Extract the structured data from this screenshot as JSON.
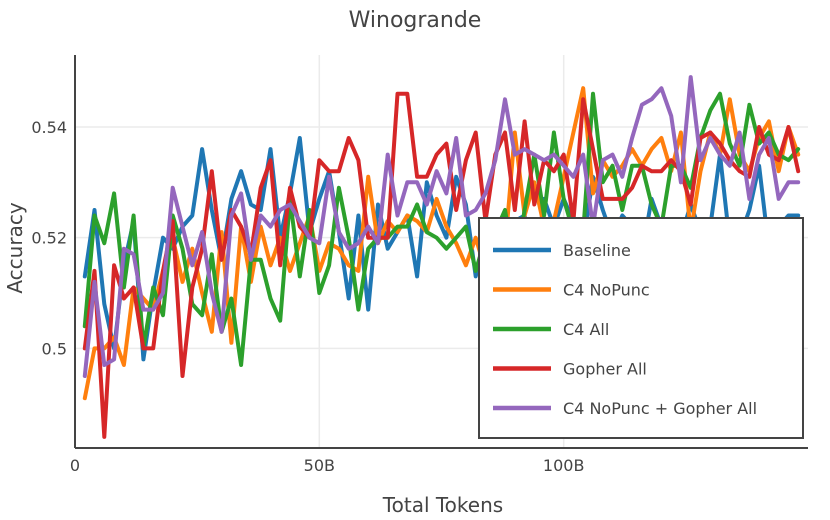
{
  "chart_data": {
    "type": "line",
    "title": "Winogrande",
    "xlabel": "Total Tokens",
    "ylabel": "Accuracy",
    "xlim": [
      0,
      150
    ],
    "ylim": [
      0.482,
      0.553
    ],
    "x_ticks": [
      0,
      50,
      100
    ],
    "x_tick_labels": [
      "0",
      "50B",
      "100B"
    ],
    "y_ticks": [
      0.5,
      0.52,
      0.54
    ],
    "y_tick_labels": [
      "0.5",
      "0.52",
      "0.54"
    ],
    "grid": true,
    "legend_position": "bottom-right",
    "x": [
      2,
      4,
      6,
      8,
      10,
      12,
      14,
      16,
      18,
      20,
      22,
      24,
      26,
      28,
      30,
      32,
      34,
      36,
      38,
      40,
      42,
      44,
      46,
      48,
      50,
      52,
      54,
      56,
      58,
      60,
      62,
      64,
      66,
      68,
      70,
      72,
      74,
      76,
      78,
      80,
      82,
      84,
      86,
      88,
      90,
      92,
      94,
      96,
      98,
      100,
      102,
      104,
      106,
      108,
      110,
      112,
      114,
      116,
      118,
      120,
      122,
      124,
      126,
      128,
      130,
      132,
      134,
      136,
      138,
      140,
      142,
      144,
      146,
      148
    ],
    "series": [
      {
        "name": "Baseline",
        "color": "#1f77b4",
        "values": [
          0.513,
          0.525,
          0.508,
          0.5,
          0.515,
          0.523,
          0.498,
          0.51,
          0.52,
          0.518,
          0.522,
          0.524,
          0.536,
          0.525,
          0.516,
          0.527,
          0.532,
          0.526,
          0.525,
          0.536,
          0.52,
          0.528,
          0.538,
          0.521,
          0.527,
          0.532,
          0.521,
          0.509,
          0.524,
          0.507,
          0.526,
          0.518,
          0.521,
          0.524,
          0.513,
          0.53,
          0.524,
          0.52,
          0.531,
          0.526,
          0.513,
          0.521,
          0.512,
          0.519,
          0.523,
          0.524,
          0.513,
          0.527,
          0.522,
          0.527,
          0.523,
          0.519,
          0.531,
          0.525,
          0.52,
          0.524,
          0.522,
          0.517,
          0.527,
          0.522,
          0.515,
          0.52,
          0.526,
          0.521,
          0.522,
          0.535,
          0.519,
          0.52,
          0.525,
          0.533,
          0.518,
          0.522,
          0.524,
          0.524
        ]
      },
      {
        "name": "C4 NoPunc",
        "color": "#ff7f0e",
        "values": [
          0.491,
          0.5,
          0.5,
          0.502,
          0.497,
          0.511,
          0.509,
          0.507,
          0.514,
          0.52,
          0.512,
          0.518,
          0.51,
          0.503,
          0.521,
          0.501,
          0.522,
          0.512,
          0.522,
          0.515,
          0.52,
          0.514,
          0.519,
          0.524,
          0.514,
          0.519,
          0.518,
          0.515,
          0.514,
          0.531,
          0.519,
          0.523,
          0.521,
          0.524,
          0.523,
          0.521,
          0.527,
          0.522,
          0.519,
          0.515,
          0.52,
          0.514,
          0.516,
          0.518,
          0.539,
          0.524,
          0.53,
          0.522,
          0.523,
          0.531,
          0.539,
          0.547,
          0.528,
          0.534,
          0.531,
          0.533,
          0.536,
          0.533,
          0.536,
          0.538,
          0.532,
          0.539,
          0.521,
          0.532,
          0.539,
          0.535,
          0.545,
          0.535,
          0.532,
          0.538,
          0.541,
          0.532,
          0.54,
          0.535
        ]
      },
      {
        "name": "C4 All",
        "color": "#2ca02c",
        "values": [
          0.504,
          0.524,
          0.519,
          0.528,
          0.511,
          0.524,
          0.5,
          0.511,
          0.506,
          0.524,
          0.518,
          0.508,
          0.506,
          0.517,
          0.503,
          0.509,
          0.497,
          0.516,
          0.516,
          0.509,
          0.505,
          0.527,
          0.513,
          0.525,
          0.51,
          0.515,
          0.529,
          0.52,
          0.507,
          0.518,
          0.52,
          0.52,
          0.522,
          0.522,
          0.526,
          0.521,
          0.52,
          0.518,
          0.52,
          0.522,
          0.514,
          0.52,
          0.521,
          0.525,
          0.514,
          0.525,
          0.535,
          0.524,
          0.539,
          0.527,
          0.521,
          0.521,
          0.546,
          0.53,
          0.533,
          0.525,
          0.533,
          0.533,
          0.526,
          0.522,
          0.533,
          0.533,
          0.529,
          0.538,
          0.543,
          0.546,
          0.537,
          0.533,
          0.544,
          0.537,
          0.539,
          0.535,
          0.534,
          0.536
        ]
      },
      {
        "name": "Gopher All",
        "color": "#d62728",
        "values": [
          0.5,
          0.514,
          0.484,
          0.515,
          0.509,
          0.511,
          0.5,
          0.5,
          0.514,
          0.523,
          0.495,
          0.511,
          0.518,
          0.532,
          0.516,
          0.525,
          0.522,
          0.517,
          0.529,
          0.534,
          0.515,
          0.529,
          0.522,
          0.52,
          0.534,
          0.532,
          0.532,
          0.538,
          0.534,
          0.52,
          0.52,
          0.52,
          0.546,
          0.546,
          0.531,
          0.531,
          0.535,
          0.537,
          0.525,
          0.534,
          0.539,
          0.523,
          0.535,
          0.539,
          0.525,
          0.541,
          0.526,
          0.534,
          0.532,
          0.535,
          0.523,
          0.545,
          0.536,
          0.527,
          0.527,
          0.527,
          0.529,
          0.533,
          0.532,
          0.532,
          0.534,
          0.532,
          0.526,
          0.538,
          0.539,
          0.537,
          0.534,
          0.532,
          0.531,
          0.54,
          0.535,
          0.534,
          0.54,
          0.532
        ]
      },
      {
        "name": "C4 NoPunc + Gopher All",
        "color": "#9467bd",
        "values": [
          0.495,
          0.512,
          0.497,
          0.498,
          0.518,
          0.517,
          0.507,
          0.507,
          0.51,
          0.529,
          0.522,
          0.515,
          0.521,
          0.51,
          0.503,
          0.524,
          0.528,
          0.516,
          0.524,
          0.522,
          0.525,
          0.526,
          0.523,
          0.52,
          0.519,
          0.531,
          0.521,
          0.518,
          0.519,
          0.522,
          0.519,
          0.535,
          0.524,
          0.53,
          0.53,
          0.526,
          0.532,
          0.528,
          0.538,
          0.524,
          0.525,
          0.528,
          0.534,
          0.545,
          0.535,
          0.536,
          0.535,
          0.534,
          0.535,
          0.533,
          0.531,
          0.535,
          0.522,
          0.534,
          0.535,
          0.531,
          0.538,
          0.544,
          0.545,
          0.547,
          0.542,
          0.53,
          0.549,
          0.534,
          0.538,
          0.535,
          0.533,
          0.539,
          0.527,
          0.535,
          0.538,
          0.527,
          0.53,
          0.53
        ]
      }
    ]
  }
}
